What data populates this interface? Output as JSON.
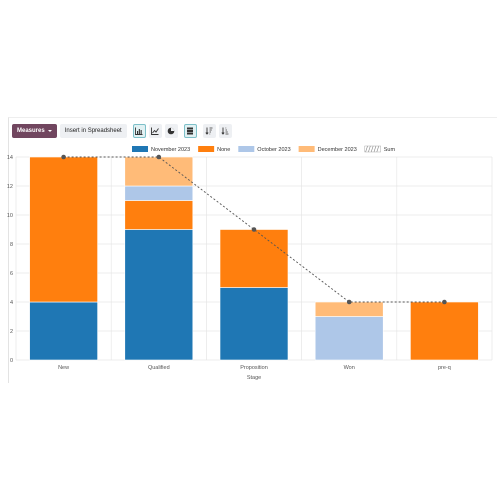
{
  "toolbar": {
    "measures_label": "Measures",
    "insert_label": "Insert in Spreadsheet",
    "icons": [
      "bar-chart-icon",
      "line-chart-icon",
      "pie-chart-icon",
      "stacked-icon",
      "sort-descending-icon",
      "sort-ascending-icon"
    ]
  },
  "colors": {
    "november_2023": "#1f77b4",
    "none": "#ff7f0e",
    "october_2023": "#aec7e8",
    "december_2023": "#ffbb78",
    "sum_line": "#555555",
    "measures_button": "#71465f"
  },
  "chart_data": {
    "type": "bar",
    "stacked": true,
    "categories": [
      "New",
      "Qualified",
      "Proposition",
      "Won",
      "pre-q"
    ],
    "xlabel": "Stage",
    "ylabel": "",
    "ylim": [
      0,
      14
    ],
    "yticks": [
      0,
      2,
      4,
      6,
      8,
      10,
      12,
      14
    ],
    "grid": true,
    "legend_position": "top",
    "series": [
      {
        "name": "November 2023",
        "color": "#1f77b4",
        "values": [
          4,
          9,
          5,
          0,
          0
        ]
      },
      {
        "name": "None",
        "color": "#ff7f0e",
        "values": [
          10,
          2,
          4,
          0,
          4
        ]
      },
      {
        "name": "October 2023",
        "color": "#aec7e8",
        "values": [
          0,
          1,
          0,
          3,
          0
        ]
      },
      {
        "name": "December 2023",
        "color": "#ffbb78",
        "values": [
          0,
          2,
          0,
          1,
          0
        ]
      }
    ],
    "sum_line": {
      "name": "Sum",
      "values": [
        14,
        14,
        9,
        4,
        4
      ]
    }
  }
}
